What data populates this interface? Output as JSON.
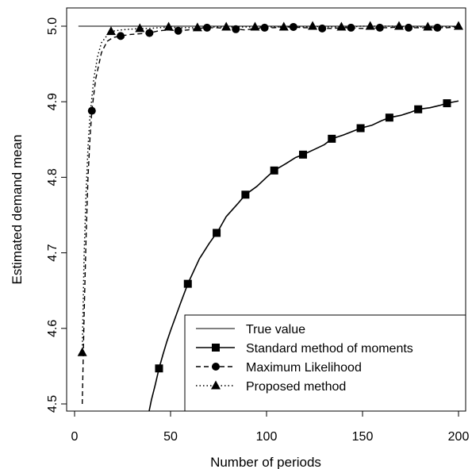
{
  "chart_data": {
    "type": "line",
    "title": "",
    "xlabel": "Number of periods",
    "ylabel": "Estimated demand mean",
    "xlim": [
      0,
      200
    ],
    "ylim": [
      4.5,
      5.0
    ],
    "x_ticks": [
      0,
      50,
      100,
      150,
      200
    ],
    "y_ticks": [
      4.5,
      4.6,
      4.7,
      4.8,
      4.9,
      5.0
    ],
    "x_tick_labels": [
      "0",
      "50",
      "100",
      "150",
      "200"
    ],
    "y_tick_labels": [
      "4.5",
      "4.6",
      "4.7",
      "4.8",
      "4.9",
      "5.0"
    ],
    "grid": false,
    "legend_position": "bottom-right",
    "series": [
      {
        "name": "True value",
        "style": "solid-thin",
        "marker": "none",
        "x": [
          2,
          200
        ],
        "y": [
          5.0,
          5.0
        ],
        "marker_x": []
      },
      {
        "name": "Standard method of moments",
        "style": "solid",
        "marker": "square",
        "x": [
          38,
          40,
          42,
          44,
          46,
          48,
          50,
          55,
          59,
          65,
          70,
          75,
          79,
          85,
          89,
          95,
          100,
          104,
          110,
          115,
          119,
          125,
          130,
          134,
          140,
          145,
          149,
          155,
          160,
          164,
          170,
          175,
          179,
          185,
          190,
          194,
          200
        ],
        "y": [
          4.48,
          4.505,
          4.525,
          4.547,
          4.565,
          4.582,
          4.597,
          4.632,
          4.659,
          4.692,
          4.712,
          4.73,
          4.748,
          4.765,
          4.777,
          4.788,
          4.8,
          4.809,
          4.818,
          4.826,
          4.83,
          4.837,
          4.843,
          4.851,
          4.856,
          4.861,
          4.865,
          4.869,
          4.875,
          4.879,
          4.882,
          4.886,
          4.89,
          4.892,
          4.895,
          4.898,
          4.901
        ],
        "marker_x": [
          44,
          59,
          74,
          89,
          104,
          119,
          134,
          149,
          164,
          179,
          194
        ]
      },
      {
        "name": "Maximum Likelihood",
        "style": "dashed",
        "marker": "circle",
        "x": [
          4,
          5,
          6,
          7,
          8,
          9,
          11,
          14,
          17,
          20,
          24,
          29,
          34,
          39,
          44,
          49,
          54,
          59,
          64,
          69,
          74,
          79,
          84,
          89,
          94,
          99,
          104,
          109,
          114,
          119,
          124,
          129,
          134,
          139,
          144,
          149,
          154,
          159,
          164,
          169,
          174,
          179,
          184,
          189,
          194,
          200
        ],
        "y": [
          4.5,
          4.62,
          4.72,
          4.8,
          4.85,
          4.888,
          4.93,
          4.965,
          4.98,
          4.985,
          4.987,
          4.989,
          4.99,
          4.991,
          4.994,
          4.995,
          4.994,
          4.995,
          4.997,
          4.998,
          4.998,
          4.997,
          4.996,
          4.995,
          4.997,
          4.998,
          4.998,
          4.999,
          4.999,
          4.998,
          4.998,
          4.997,
          4.997,
          4.998,
          4.998,
          4.997,
          4.997,
          4.998,
          4.998,
          4.999,
          4.998,
          4.998,
          4.998,
          4.998,
          4.998,
          4.999
        ],
        "marker_x": [
          9,
          24,
          39,
          54,
          69,
          84,
          99,
          114,
          129,
          144,
          159,
          174,
          189
        ]
      },
      {
        "name": "Proposed method",
        "style": "dotted",
        "marker": "triangle",
        "x": [
          4,
          5,
          6,
          7,
          8,
          10,
          12,
          14,
          17,
          19,
          24,
          29,
          34,
          39,
          44,
          49,
          54,
          59,
          64,
          69,
          74,
          79,
          84,
          89,
          94,
          99,
          104,
          109,
          114,
          119,
          124,
          129,
          134,
          139,
          144,
          149,
          154,
          159,
          164,
          169,
          174,
          179,
          184,
          189,
          194,
          200
        ],
        "y": [
          4.568,
          4.7,
          4.78,
          4.84,
          4.88,
          4.93,
          4.96,
          4.978,
          4.988,
          4.993,
          4.995,
          4.996,
          4.997,
          4.997,
          4.998,
          4.999,
          4.998,
          4.998,
          4.998,
          4.999,
          4.999,
          4.999,
          4.999,
          4.999,
          4.999,
          4.999,
          4.999,
          4.999,
          4.999,
          4.999,
          5.0,
          4.999,
          4.999,
          4.999,
          4.999,
          5.0,
          5.0,
          5.0,
          5.0,
          5.0,
          4.999,
          4.999,
          4.999,
          4.999,
          4.999,
          5.0
        ],
        "marker_x": [
          4,
          19,
          34,
          49,
          64,
          79,
          94,
          109,
          124,
          139,
          154,
          169,
          184,
          200
        ]
      }
    ]
  }
}
